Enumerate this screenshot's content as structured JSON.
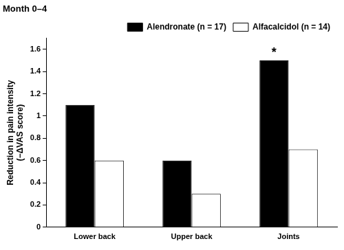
{
  "chart_data": {
    "type": "bar",
    "title": "Month 0–4",
    "y_label": [
      "Reduction in pain intensity",
      "(−ΔVAS score)"
    ],
    "categories": [
      "Lower back",
      "Upper back",
      "Joints"
    ],
    "series": [
      {
        "name": "Alendronate (n = 17)",
        "color": "#000000",
        "values": [
          1.1,
          0.6,
          1.5
        ]
      },
      {
        "name": "Alfacalcidol (n = 14)",
        "color": "#ffffff",
        "values": [
          0.6,
          0.3,
          0.7
        ]
      }
    ],
    "ylim": [
      0,
      1.7
    ],
    "yticks": [
      0,
      0.2,
      0.4,
      0.6,
      0.8,
      1.0,
      1.2,
      1.4,
      1.6
    ],
    "grid": false,
    "legend": "top right",
    "annotations": [
      {
        "text": "*",
        "series": "Alendronate (n = 17)",
        "category": "Joints"
      }
    ]
  }
}
